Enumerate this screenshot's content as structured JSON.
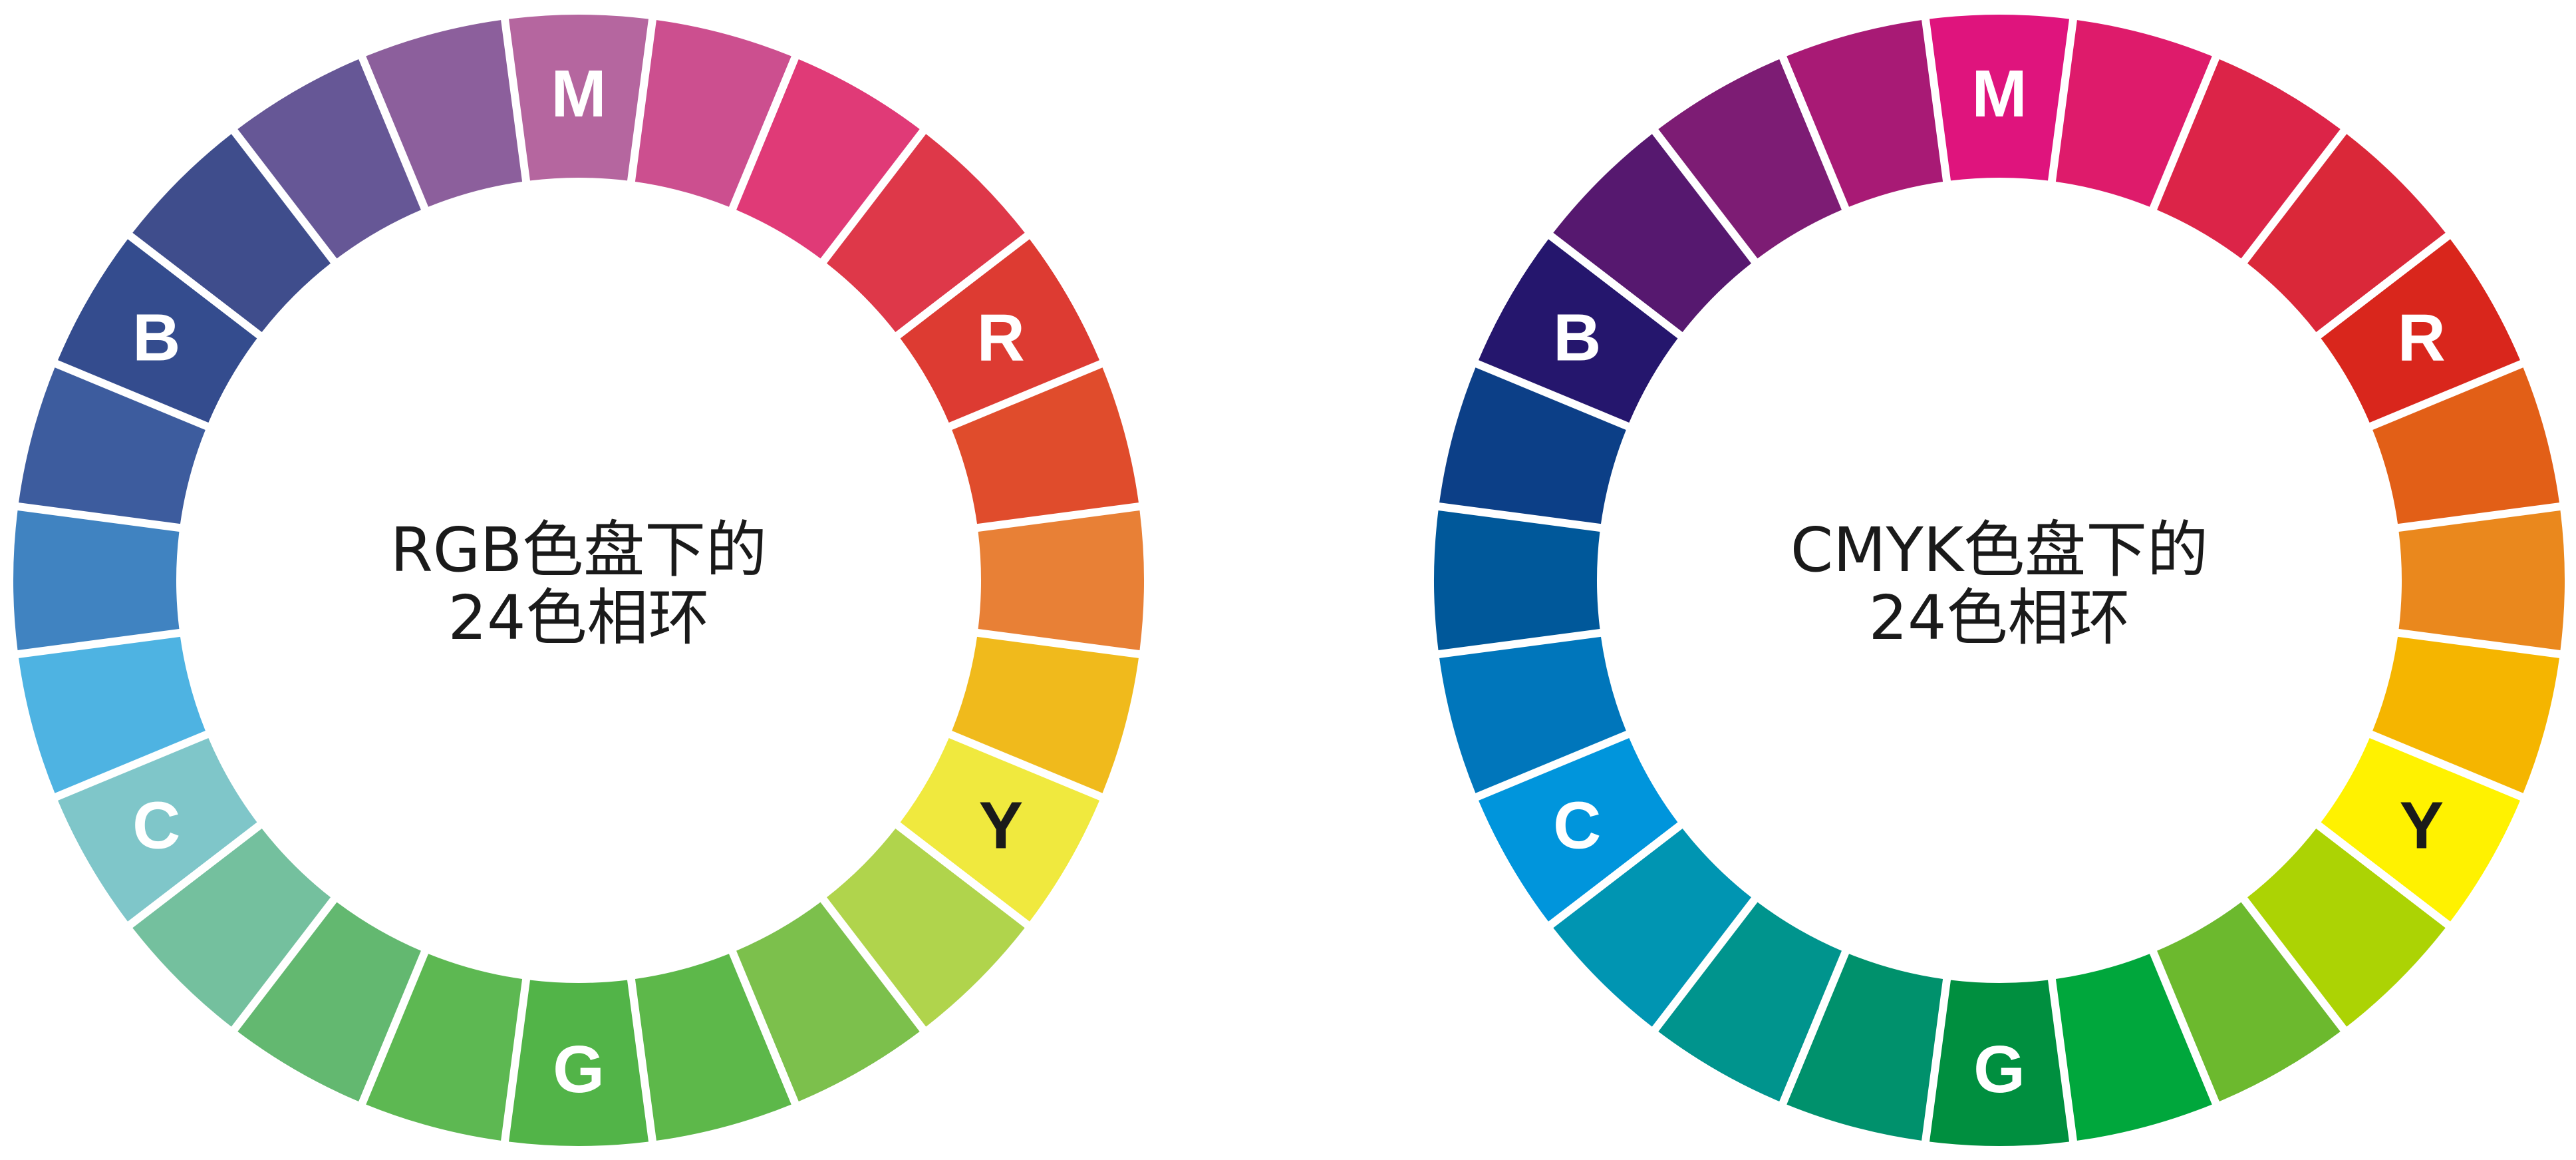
{
  "wheels": [
    {
      "title_line1": "RGB色盘下的",
      "title_line2": "24色相环",
      "labels": {
        "0": "M",
        "4": "R",
        "8": "Y",
        "12": "G",
        "16": "C",
        "20": "B"
      },
      "label_colors": {
        "0": "#ffffff",
        "4": "#ffffff",
        "8": "#1a1a1a",
        "12": "#ffffff",
        "16": "#ffffff",
        "20": "#ffffff"
      },
      "colors": [
        "#b5669f",
        "#cc4f8f",
        "#e03a77",
        "#de3849",
        "#dd3b32",
        "#e04c2c",
        "#e88036",
        "#f0ba1c",
        "#f0e93e",
        "#b0d44c",
        "#7cc04c",
        "#5db84a",
        "#52b448",
        "#5db852",
        "#63b870",
        "#74c09e",
        "#7fc6c9",
        "#4eb3e2",
        "#4083c1",
        "#3d5c9e",
        "#344c8e",
        "#3f4d8c",
        "#665796",
        "#8c5f9c"
      ]
    },
    {
      "title_line1": "CMYK色盘下的",
      "title_line2": "24色相环",
      "labels": {
        "0": "M",
        "4": "R",
        "8": "Y",
        "12": "G",
        "16": "C",
        "20": "B"
      },
      "label_colors": {
        "0": "#ffffff",
        "4": "#ffffff",
        "8": "#1a1a1a",
        "12": "#ffffff",
        "16": "#ffffff",
        "20": "#ffffff"
      },
      "colors": [
        "#df147d",
        "#de1b6b",
        "#dc2448",
        "#da2839",
        "#d9261c",
        "#e25f17",
        "#ea881d",
        "#f5b500",
        "#fff200",
        "#acd304",
        "#6cb92e",
        "#00a73c",
        "#008f3f",
        "#00916c",
        "#00948d",
        "#0095b2",
        "#0095dc",
        "#0076bb",
        "#00589a",
        "#0c3f87",
        "#25166d",
        "#56186f",
        "#7d1c74",
        "#a81a75"
      ]
    }
  ]
}
